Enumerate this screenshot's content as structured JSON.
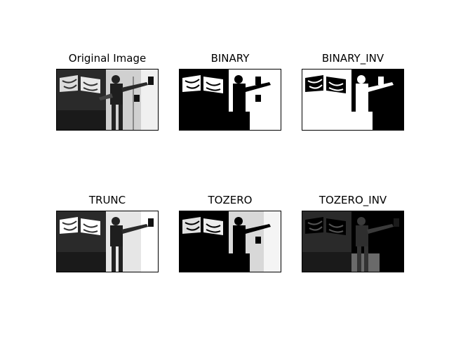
{
  "panels": [
    {
      "title": "Original Image",
      "mode": "original"
    },
    {
      "title": "BINARY",
      "mode": "binary"
    },
    {
      "title": "BINARY_INV",
      "mode": "binary_inv"
    },
    {
      "title": "TRUNC",
      "mode": "trunc"
    },
    {
      "title": "TOZERO",
      "mode": "tozero"
    },
    {
      "title": "TOZERO_INV",
      "mode": "tozero_inv"
    }
  ]
}
